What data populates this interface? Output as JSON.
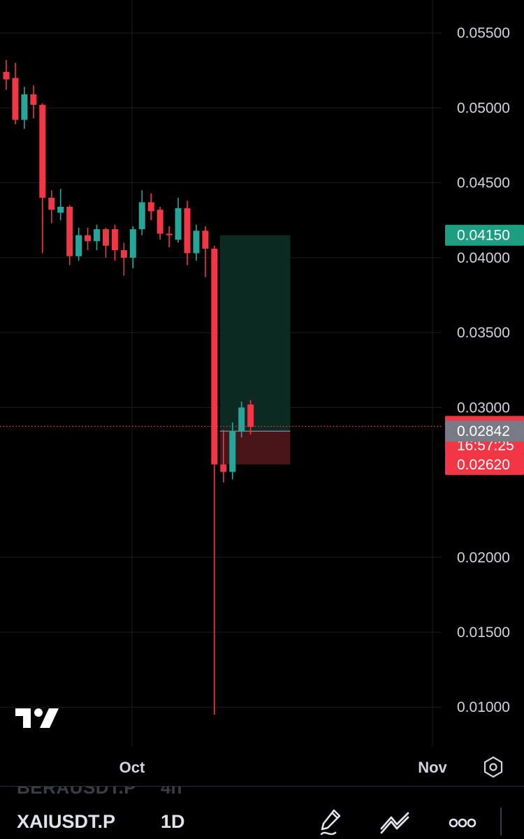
{
  "chart_data": {
    "type": "candlestick",
    "symbol": "XAIUSDT.P",
    "interval": "1D",
    "y_ticks": [
      "0.05500",
      "0.05000",
      "0.04500",
      "0.04000",
      "0.03500",
      "0.03000",
      "0.02000",
      "0.01500",
      "0.01000"
    ],
    "x_ticks": [
      "Oct",
      "Nov"
    ],
    "ylim": [
      0.0074,
      0.0572
    ],
    "candles": [
      {
        "o": 0.0524,
        "h": 0.0532,
        "l": 0.0512,
        "c": 0.0519
      },
      {
        "o": 0.052,
        "h": 0.053,
        "l": 0.0489,
        "c": 0.0492
      },
      {
        "o": 0.0492,
        "h": 0.0514,
        "l": 0.0486,
        "c": 0.0509
      },
      {
        "o": 0.0509,
        "h": 0.0515,
        "l": 0.0493,
        "c": 0.0502
      },
      {
        "o": 0.0502,
        "h": 0.0503,
        "l": 0.0403,
        "c": 0.044
      },
      {
        "o": 0.044,
        "h": 0.0445,
        "l": 0.0423,
        "c": 0.0432
      },
      {
        "o": 0.043,
        "h": 0.0446,
        "l": 0.0425,
        "c": 0.0434
      },
      {
        "o": 0.0434,
        "h": 0.0435,
        "l": 0.0395,
        "c": 0.0401
      },
      {
        "o": 0.0401,
        "h": 0.042,
        "l": 0.0398,
        "c": 0.0415
      },
      {
        "o": 0.0415,
        "h": 0.042,
        "l": 0.0405,
        "c": 0.0411
      },
      {
        "o": 0.0411,
        "h": 0.0422,
        "l": 0.0405,
        "c": 0.0419
      },
      {
        "o": 0.0419,
        "h": 0.042,
        "l": 0.04,
        "c": 0.0408
      },
      {
        "o": 0.0419,
        "h": 0.0422,
        "l": 0.0398,
        "c": 0.0405
      },
      {
        "o": 0.0405,
        "h": 0.041,
        "l": 0.0388,
        "c": 0.04
      },
      {
        "o": 0.04,
        "h": 0.0421,
        "l": 0.0393,
        "c": 0.0419
      },
      {
        "o": 0.0419,
        "h": 0.0445,
        "l": 0.0415,
        "c": 0.0437
      },
      {
        "o": 0.0437,
        "h": 0.0443,
        "l": 0.0425,
        "c": 0.0431
      },
      {
        "o": 0.0432,
        "h": 0.0434,
        "l": 0.0412,
        "c": 0.0416
      },
      {
        "o": 0.0416,
        "h": 0.0421,
        "l": 0.0407,
        "c": 0.0415
      },
      {
        "o": 0.0412,
        "h": 0.044,
        "l": 0.041,
        "c": 0.0433
      },
      {
        "o": 0.0433,
        "h": 0.0438,
        "l": 0.0395,
        "c": 0.0403
      },
      {
        "o": 0.0403,
        "h": 0.0422,
        "l": 0.0398,
        "c": 0.0418
      },
      {
        "o": 0.0418,
        "h": 0.0421,
        "l": 0.0387,
        "c": 0.0406
      },
      {
        "o": 0.0406,
        "h": 0.0408,
        "l": 0.0095,
        "c": 0.0262
      },
      {
        "o": 0.0262,
        "h": 0.0285,
        "l": 0.025,
        "c": 0.0257
      },
      {
        "o": 0.0257,
        "h": 0.029,
        "l": 0.0252,
        "c": 0.0284
      },
      {
        "o": 0.0284,
        "h": 0.0304,
        "l": 0.028,
        "c": 0.03
      },
      {
        "o": 0.0302,
        "h": 0.0305,
        "l": 0.0282,
        "c": 0.0287
      }
    ],
    "position": {
      "target": 0.0415,
      "entry": 0.02842,
      "stop": 0.0262,
      "start_index": 24,
      "end_index": 31
    },
    "price_labels": {
      "target": "0.04150",
      "current": "0.02874",
      "countdown": "16:57:25",
      "entry": "0.02842",
      "stop": "0.02620"
    },
    "current_price": 0.02874,
    "colors": {
      "up": "#26a69a",
      "down": "#f23645",
      "target_zone": "#0b2a22",
      "stop_zone": "#4a1519",
      "entry_label": "#787b86",
      "target_label": "#1e9e80",
      "grid": "#1b1d22"
    }
  },
  "bottom_bar": {
    "ghost_symbol": "BERAUSDT.P",
    "ghost_interval": "4h",
    "symbol": "XAIUSDT.P",
    "interval": "1D"
  },
  "toolbar": {
    "icons": [
      "pencil-icon",
      "line-tool-icon",
      "more-icon"
    ]
  },
  "logo": "tradingview-logo-icon",
  "settings_icon": "settings-hexagon-icon"
}
